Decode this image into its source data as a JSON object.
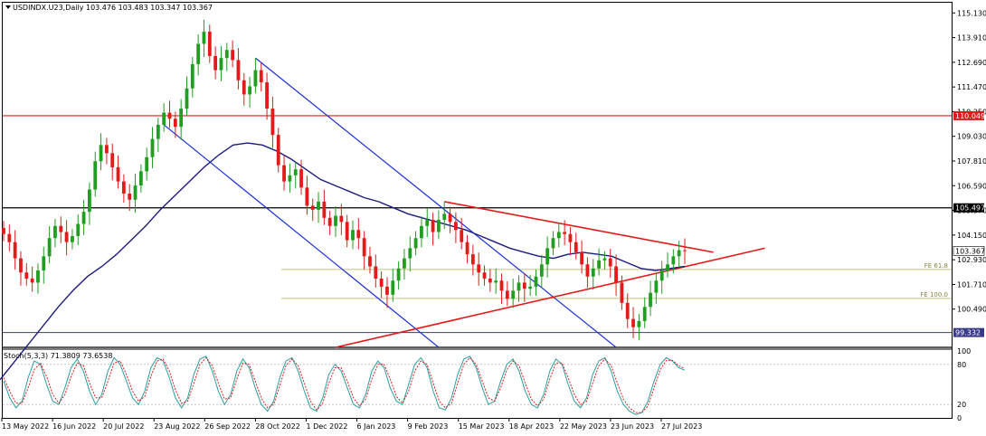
{
  "header": {
    "symbol_line": "USDINDX.U23,Daily  103.476 103.483 103.347 103.367",
    "symbol_icon": "triangle-down-icon"
  },
  "chart_data": [
    {
      "type": "candlestick",
      "symbol": "USDINDX.U23",
      "timeframe": "Daily",
      "ohlc_last": {
        "open": 103.476,
        "high": 103.483,
        "low": 103.347,
        "close": 103.367
      },
      "price_axis_ticks": [
        "115.130",
        "113.910",
        "112.690",
        "111.470",
        "110.250",
        "109.030",
        "107.810",
        "106.590",
        "105.370",
        "104.150",
        "102.930",
        "101.710",
        "100.490"
      ],
      "ylim": [
        98.6,
        115.5
      ],
      "date_axis_ticks": [
        "13 May 2022",
        "16 Jun 2022",
        "20 Jul 2022",
        "23 Aug 2022",
        "26 Sep 2022",
        "28 Oct 2022",
        "1 Dec 2022",
        "6 Jan 2023",
        "9 Feb 2023",
        "15 Mar 2023",
        "18 Apr 2023",
        "22 May 2023",
        "23 Jun 2023",
        "27 Jul 2023"
      ],
      "closes": [
        104.2,
        103.8,
        103.0,
        102.3,
        102.0,
        101.8,
        102.4,
        103.1,
        104.0,
        104.6,
        104.3,
        103.8,
        104.1,
        104.7,
        105.3,
        106.4,
        107.8,
        108.6,
        108.2,
        107.5,
        106.8,
        106.2,
        105.9,
        106.6,
        107.3,
        108.0,
        108.9,
        109.6,
        110.2,
        109.9,
        109.5,
        110.4,
        111.4,
        112.6,
        113.6,
        114.2,
        113.0,
        112.3,
        112.9,
        113.3,
        112.8,
        111.8,
        111.1,
        111.5,
        112.3,
        111.7,
        110.4,
        109.1,
        107.6,
        106.8,
        107.1,
        107.4,
        106.5,
        105.6,
        105.4,
        105.8,
        105.0,
        104.6,
        105.1,
        104.8,
        103.9,
        104.4,
        104.0,
        103.1,
        102.6,
        102.0,
        101.6,
        101.2,
        101.9,
        102.5,
        103.0,
        103.5,
        104.0,
        104.6,
        104.9,
        104.3,
        104.9,
        105.2,
        104.8,
        104.4,
        103.8,
        103.2,
        102.7,
        102.3,
        102.0,
        101.8,
        101.9,
        101.4,
        101.0,
        101.4,
        101.8,
        101.5,
        101.6,
        102.1,
        102.7,
        103.5,
        104.0,
        104.3,
        104.2,
        103.8,
        103.3,
        102.7,
        102.1,
        102.5,
        102.9,
        103.0,
        102.6,
        101.8,
        100.8,
        100.0,
        99.6,
        99.9,
        100.6,
        101.3,
        101.9,
        102.4,
        102.7,
        103.1,
        103.4,
        103.367
      ],
      "moving_average_series": {
        "values": [
          97.0,
          97.9,
          98.8,
          99.7,
          100.6,
          101.4,
          102.1,
          102.6,
          103.2,
          103.9,
          104.6,
          105.4,
          106.1,
          106.8,
          107.5,
          108.1,
          108.6,
          108.7,
          108.6,
          108.3,
          107.9,
          107.4,
          106.9,
          106.6,
          106.3,
          106.0,
          105.8,
          105.5,
          105.2,
          105.0,
          104.8,
          104.6,
          104.4,
          104.1,
          103.8,
          103.5,
          103.3,
          103.1,
          103.0,
          103.2,
          103.3,
          103.2,
          103.1,
          102.8,
          102.5,
          102.4,
          102.5,
          102.6
        ]
      },
      "horizontal_levels": [
        {
          "price": 110.049,
          "label": "110.049",
          "color": "#e31a1a"
        },
        {
          "price": 105.497,
          "label": "105.497",
          "color": "#000000"
        },
        {
          "price": 99.332,
          "label": "99.332",
          "color": "#3a3a8a"
        },
        {
          "price": 98.6,
          "label": "",
          "color": "#000000"
        }
      ],
      "fibonacci_levels": [
        {
          "price": 102.45,
          "label": "FE 61.8"
        },
        {
          "price": 101.02,
          "label": "FE 100.0"
        }
      ],
      "current_price_label": "103.367",
      "colors": {
        "bull": "#1f9e1f",
        "bear": "#e31a1a",
        "ma": "#1c1c80",
        "channel": "#1b2fd6",
        "triangle": "#e31a1a",
        "fib": "#c8c07a"
      }
    },
    {
      "type": "line",
      "name": "Stoch(5,3,3) 71.3809 73.6538",
      "ticks": [
        "100",
        "80",
        "20",
        "0"
      ],
      "ylim": [
        0,
        100
      ],
      "main": [
        55,
        30,
        15,
        25,
        60,
        85,
        80,
        50,
        25,
        20,
        45,
        75,
        88,
        70,
        40,
        20,
        35,
        70,
        90,
        80,
        55,
        30,
        20,
        40,
        75,
        90,
        85,
        60,
        30,
        15,
        30,
        65,
        88,
        92,
        70,
        40,
        20,
        35,
        70,
        88,
        75,
        45,
        20,
        10,
        25,
        60,
        85,
        90,
        70,
        40,
        15,
        10,
        30,
        65,
        80,
        70,
        45,
        20,
        15,
        35,
        70,
        85,
        75,
        45,
        25,
        20,
        50,
        80,
        90,
        75,
        40,
        15,
        12,
        30,
        65,
        88,
        92,
        75,
        45,
        20,
        25,
        55,
        80,
        88,
        70,
        40,
        20,
        15,
        35,
        70,
        88,
        80,
        50,
        25,
        15,
        30,
        65,
        85,
        90,
        70,
        40,
        20,
        10,
        5,
        8,
        25,
        55,
        80,
        90,
        85,
        75,
        71.38
      ],
      "signal": [
        60,
        40,
        22,
        22,
        45,
        72,
        82,
        62,
        35,
        22,
        35,
        62,
        82,
        78,
        52,
        30,
        30,
        55,
        82,
        85,
        65,
        40,
        25,
        32,
        62,
        85,
        88,
        70,
        42,
        22,
        25,
        52,
        80,
        90,
        78,
        52,
        28,
        30,
        58,
        82,
        80,
        55,
        30,
        15,
        20,
        48,
        78,
        88,
        78,
        52,
        25,
        12,
        22,
        52,
        75,
        75,
        55,
        30,
        18,
        28,
        58,
        80,
        80,
        58,
        32,
        22,
        40,
        70,
        85,
        80,
        52,
        25,
        15,
        22,
        52,
        80,
        90,
        80,
        55,
        30,
        25,
        45,
        72,
        85,
        78,
        52,
        28,
        18,
        28,
        58,
        82,
        82,
        60,
        35,
        20,
        25,
        52,
        78,
        88,
        78,
        52,
        28,
        15,
        8,
        8,
        18,
        45,
        72,
        86,
        86,
        78,
        73.65
      ]
    }
  ]
}
